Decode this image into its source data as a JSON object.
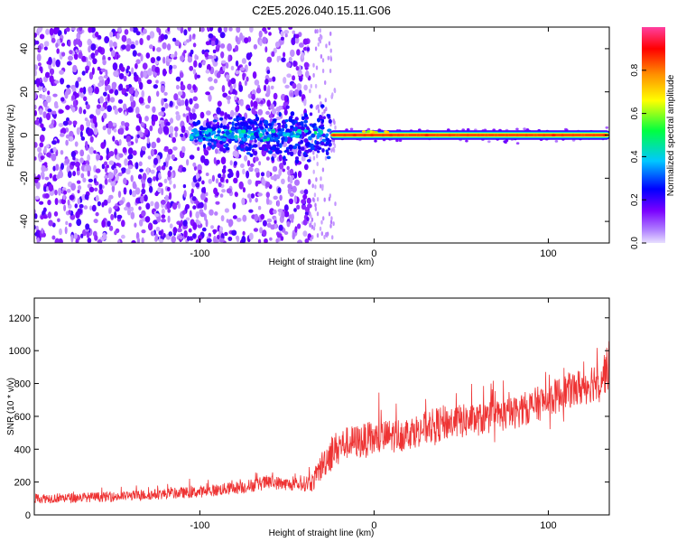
{
  "figure": {
    "title": "C2E5.2026.040.15.11.G06"
  },
  "chart_data": [
    {
      "type": "heatmap",
      "title": "C2E5.2026.040.15.11.G06",
      "xlabel": "Height of straight line (km)",
      "ylabel": "Frequency (Hz)",
      "xlim": [
        -195,
        135
      ],
      "ylim": [
        -50,
        50
      ],
      "xticks": [
        -100,
        0,
        100
      ],
      "yticks": [
        -40,
        -20,
        0,
        20,
        40
      ],
      "colorbar": {
        "label": "Normalized spectral amplitude",
        "range": [
          0,
          1
        ],
        "ticks": [
          "0.0",
          "0.2",
          "0.4",
          "0.6",
          "0.8"
        ],
        "tick_values": [
          0.0,
          0.2,
          0.4,
          0.6,
          0.8
        ],
        "colormap": [
          "#e8e0ff",
          "#7a00ff",
          "#0000ff",
          "#00c8ff",
          "#00ff40",
          "#ffff00",
          "#ff9000",
          "#ff0000",
          "#ff3fa0"
        ]
      },
      "description_data": {
        "noise_region_x": [
          -195,
          -37
        ],
        "noise_tail_x": [
          -37,
          -22
        ],
        "dense_cluster_x": [
          -105,
          -25
        ],
        "signal_line_x": [
          -25,
          135
        ],
        "signal_frequency": 0,
        "signal_amplitude_peak": 0.95
      }
    },
    {
      "type": "line",
      "xlabel": "Height of straight line (km)",
      "ylabel": "SNR (10 * v/v)",
      "xlim": [
        -195,
        135
      ],
      "ylim": [
        0,
        1320
      ],
      "xticks": [
        -100,
        0,
        100
      ],
      "yticks": [
        0,
        200,
        400,
        600,
        800,
        1000,
        1200
      ],
      "series": [
        {
          "name": "SNR",
          "color": "#ee3333",
          "x": [
            -195,
            -150,
            -100,
            -75,
            -60,
            -45,
            -35,
            -30,
            -25,
            -20,
            -15,
            0,
            20,
            40,
            60,
            80,
            100,
            110,
            120,
            130,
            135
          ],
          "mean": [
            100,
            110,
            140,
            170,
            200,
            180,
            200,
            300,
            380,
            420,
            440,
            460,
            500,
            560,
            580,
            620,
            700,
            750,
            780,
            840,
            900
          ],
          "spread": [
            60,
            60,
            70,
            80,
            90,
            70,
            120,
            180,
            220,
            200,
            200,
            220,
            200,
            220,
            200,
            200,
            220,
            220,
            240,
            260,
            280
          ]
        }
      ]
    }
  ]
}
